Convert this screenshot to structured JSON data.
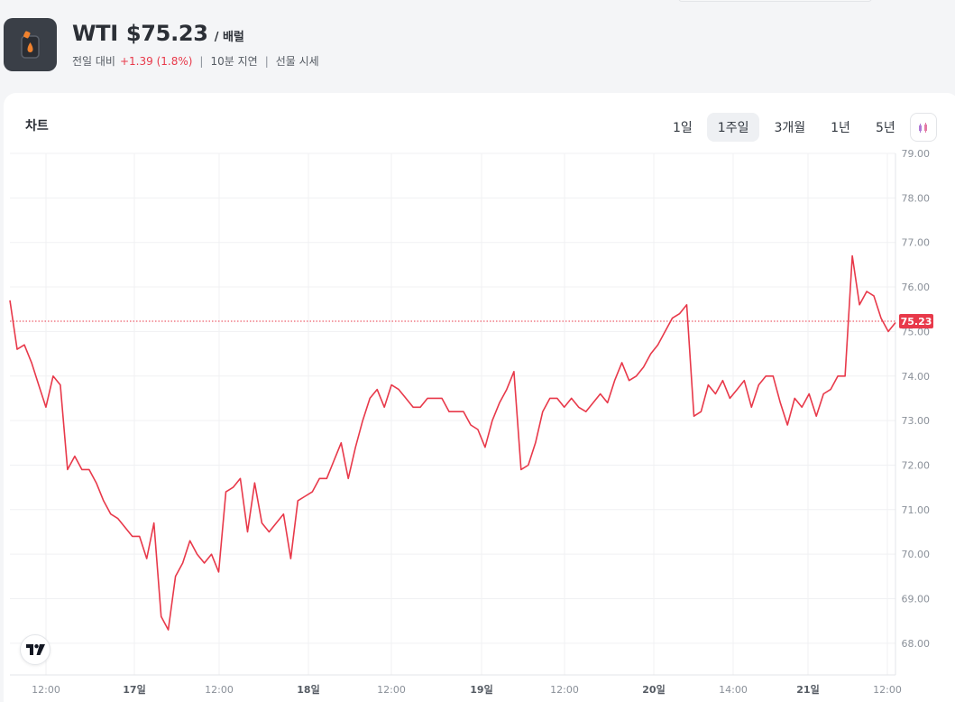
{
  "header": {
    "name": "WTI",
    "price": "$75.23",
    "unit": "/ 배럴",
    "change_label": "전일 대비",
    "change_value": "+1.39 (1.8%)",
    "delay": "10분 지연",
    "source": "선물 시세",
    "logo_icon": "oil-can-icon"
  },
  "card": {
    "title": "차트",
    "ranges": [
      {
        "label": "1일",
        "active": false
      },
      {
        "label": "1주일",
        "active": true
      },
      {
        "label": "3개월",
        "active": false
      },
      {
        "label": "1년",
        "active": false
      },
      {
        "label": "5년",
        "active": false
      }
    ],
    "chart_type_icon": "candlestick-icon",
    "watermark_icon": "tradingview-logo-icon"
  },
  "colors": {
    "line": "#e8394a",
    "accent": "#e8394a",
    "grid": "#f0f1f3",
    "axis_text": "#8a9099"
  },
  "chart_data": {
    "type": "line",
    "current_value": 75.23,
    "current_label": "75.23",
    "ylim": [
      67.3,
      79
    ],
    "yticks": [
      68,
      69,
      70,
      71,
      72,
      73,
      74,
      75,
      76,
      77,
      78,
      79
    ],
    "ytick_labels": [
      "68.00",
      "69.00",
      "70.00",
      "71.00",
      "72.00",
      "73.00",
      "74.00",
      "75.00",
      "76.00",
      "77.00",
      "78.00",
      "79.00"
    ],
    "xticks": [
      "12:00",
      "17일",
      "12:00",
      "18일",
      "12:00",
      "19일",
      "12:00",
      "20일",
      "14:00",
      "21일",
      "12:00"
    ],
    "bold_xticks": [
      "17일",
      "18일",
      "19일",
      "20일",
      "21일"
    ],
    "series": [
      {
        "values": [
          75.7,
          74.6,
          74.7,
          74.3,
          73.8,
          73.3,
          74.0,
          73.8,
          71.9,
          72.2,
          71.9,
          71.9,
          71.6,
          71.2,
          70.9,
          70.8,
          70.6,
          70.4,
          70.4,
          69.9,
          70.7,
          68.6,
          68.3,
          69.5,
          69.8,
          70.3,
          70.0,
          69.8,
          70.0,
          69.6,
          71.4,
          71.5,
          71.7,
          70.5,
          71.6,
          70.7,
          70.5,
          70.7,
          70.9,
          69.9,
          71.2,
          71.3,
          71.4,
          71.7,
          71.7,
          72.1,
          72.5,
          71.7,
          72.4,
          73.0,
          73.5,
          73.7,
          73.3,
          73.8,
          73.7,
          73.5,
          73.3,
          73.3,
          73.5,
          73.5,
          73.5,
          73.2,
          73.2,
          73.2,
          72.9,
          72.8,
          72.4,
          73.0,
          73.4,
          73.7,
          74.1,
          71.9,
          72.0,
          72.5,
          73.2,
          73.5,
          73.5,
          73.3,
          73.5,
          73.3,
          73.2,
          73.4,
          73.6,
          73.4,
          73.9,
          74.3,
          73.9,
          74.0,
          74.2,
          74.5,
          74.7,
          75.0,
          75.3,
          75.4,
          75.6,
          73.1,
          73.2,
          73.8,
          73.6,
          73.9,
          73.5,
          73.7,
          73.9,
          73.3,
          73.8,
          74.0,
          74.0,
          73.4,
          72.9,
          73.5,
          73.3,
          73.6,
          73.1,
          73.6,
          73.7,
          74.0,
          74.0,
          76.7,
          75.6,
          75.9,
          75.8,
          75.3,
          75.0,
          75.2
        ]
      }
    ]
  }
}
